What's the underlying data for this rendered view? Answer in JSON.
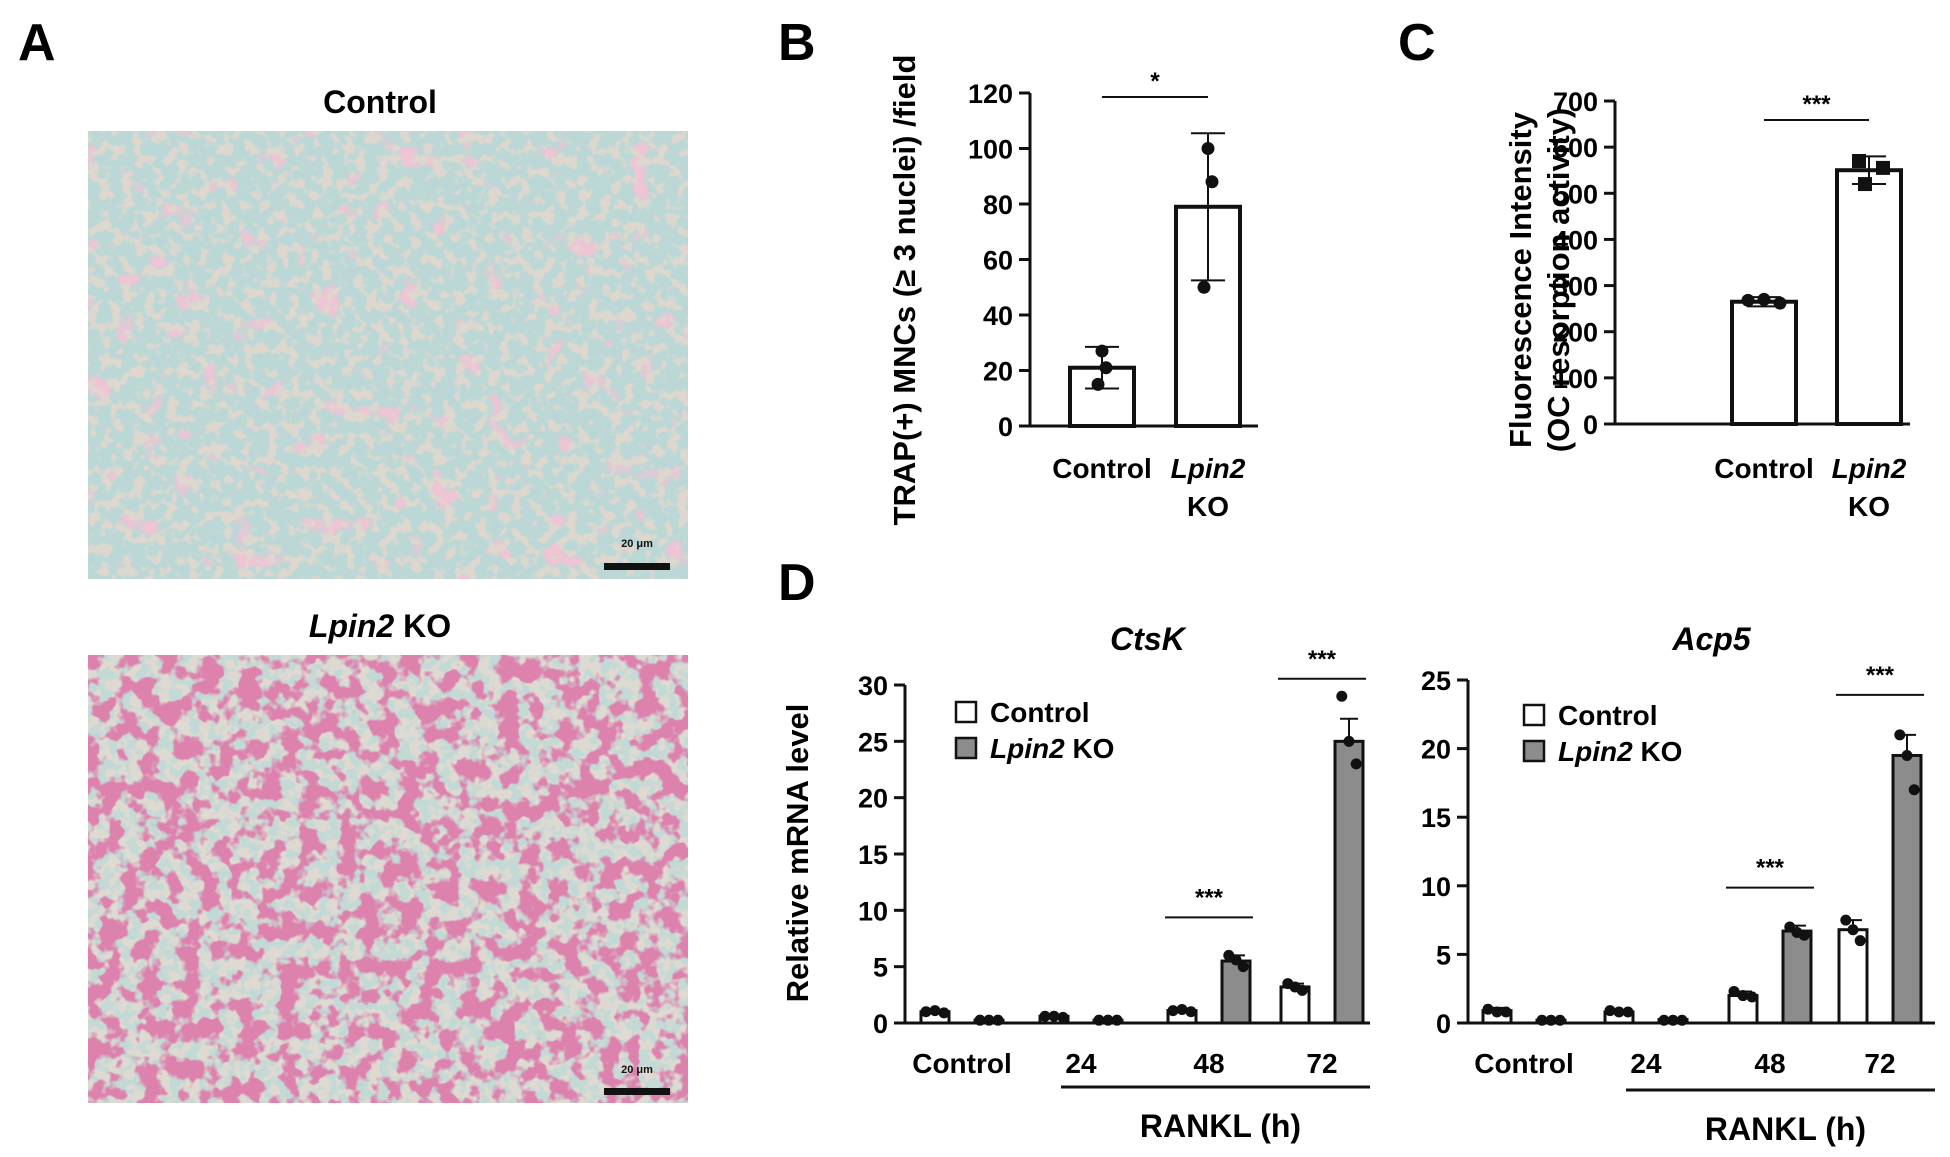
{
  "panels": {
    "A": {
      "label": "A",
      "images": [
        {
          "title": "Control",
          "scale_bar": "20 μm"
        },
        {
          "title_italic": "Lpin2",
          "title_rest": " KO",
          "scale_bar": "20 μm"
        }
      ]
    },
    "B": {
      "label": "B"
    },
    "C": {
      "label": "C"
    },
    "D": {
      "label": "D",
      "rankl_label": "RANKL (h)"
    }
  },
  "chart_data": [
    {
      "id": "B",
      "type": "bar",
      "ylabel": "TRAP(+) MNCs (≥ 3 nuclei) /field",
      "ylim": [
        0,
        120
      ],
      "yticks": [
        0,
        20,
        40,
        60,
        80,
        100,
        120
      ],
      "categories": [
        {
          "italic": "",
          "main": "Control",
          "sub": ""
        },
        {
          "italic": "Lpin2",
          "main": "",
          "sub": "KO"
        }
      ],
      "values": [
        21,
        79
      ],
      "errors": [
        7.5,
        26.5
      ],
      "points": [
        [
          27,
          21,
          15
        ],
        [
          100,
          88,
          50
        ]
      ],
      "significance": "*",
      "bar_fill": "#ffffff"
    },
    {
      "id": "C",
      "type": "bar",
      "ylabel": [
        "Fluorescence Intensity",
        "(OC resorption activity)"
      ],
      "ylim": [
        0,
        700
      ],
      "yticks": [
        0,
        100,
        200,
        300,
        400,
        500,
        600,
        700
      ],
      "categories": [
        {
          "italic": "",
          "main": "Control",
          "sub": ""
        },
        {
          "italic": "Lpin2",
          "main": "",
          "sub": "KO"
        }
      ],
      "values": [
        265,
        550
      ],
      "errors": [
        10,
        30
      ],
      "points": [
        [
          268,
          270,
          262
        ],
        [
          570,
          555,
          520
        ]
      ],
      "point_shape": [
        "circle",
        "square"
      ],
      "significance": "***",
      "bar_fill": "#ffffff"
    },
    {
      "id": "D1",
      "type": "bar",
      "title": "CtsK",
      "ylabel": "Relative mRNA level",
      "ylim": [
        0,
        30
      ],
      "yticks": [
        0,
        5,
        10,
        15,
        20,
        25,
        30
      ],
      "categories": [
        "Control",
        "24",
        "48",
        "72"
      ],
      "series": [
        {
          "name": "Control",
          "name_italic": "",
          "color": "#ffffff",
          "values": [
            1.0,
            0.6,
            1.1,
            3.2
          ],
          "errors": [
            0.15,
            0.1,
            0.15,
            0.3
          ],
          "points": [
            [
              1.0,
              1.1,
              0.9
            ],
            [
              0.6,
              0.6,
              0.5
            ],
            [
              1.1,
              1.2,
              1.0
            ],
            [
              3.5,
              3.2,
              2.9
            ]
          ]
        },
        {
          "name": " KO",
          "name_italic": "Lpin2",
          "color": "#8c8c8c",
          "values": [
            0.25,
            0.25,
            5.5,
            25
          ],
          "errors": [
            0.05,
            0.05,
            0.5,
            2.0
          ],
          "points": [
            [
              0.25,
              0.25,
              0.25
            ],
            [
              0.25,
              0.25,
              0.25
            ],
            [
              6.0,
              5.6,
              5.0
            ],
            [
              29,
              25,
              23
            ]
          ]
        }
      ],
      "significance": [
        {
          "category": "48",
          "text": "***"
        },
        {
          "category": "72",
          "text": "***"
        }
      ],
      "bracket_from": "24"
    },
    {
      "id": "D2",
      "type": "bar",
      "title": "Acp5",
      "ylim": [
        0,
        25
      ],
      "yticks": [
        0,
        5,
        10,
        15,
        20,
        25
      ],
      "categories": [
        "Control",
        "24",
        "48",
        "72"
      ],
      "series": [
        {
          "name": "Control",
          "name_italic": "",
          "color": "#ffffff",
          "values": [
            0.9,
            0.8,
            2.0,
            6.8
          ],
          "errors": [
            0.2,
            0.1,
            0.3,
            0.7
          ],
          "points": [
            [
              1.0,
              0.8,
              0.8
            ],
            [
              0.9,
              0.8,
              0.8
            ],
            [
              2.3,
              2.0,
              1.9
            ],
            [
              7.5,
              6.8,
              6.0
            ]
          ]
        },
        {
          "name": " KO",
          "name_italic": "Lpin2",
          "color": "#8c8c8c",
          "values": [
            0.2,
            0.25,
            6.7,
            19.5
          ],
          "errors": [
            0.05,
            0.05,
            0.4,
            1.5
          ],
          "points": [
            [
              0.2,
              0.2,
              0.2
            ],
            [
              0.2,
              0.2,
              0.2
            ],
            [
              7.0,
              6.6,
              6.4
            ],
            [
              21,
              19.5,
              17
            ]
          ]
        }
      ],
      "significance": [
        {
          "category": "48",
          "text": "***"
        },
        {
          "category": "72",
          "text": "***"
        }
      ],
      "bracket_from": "24"
    }
  ]
}
